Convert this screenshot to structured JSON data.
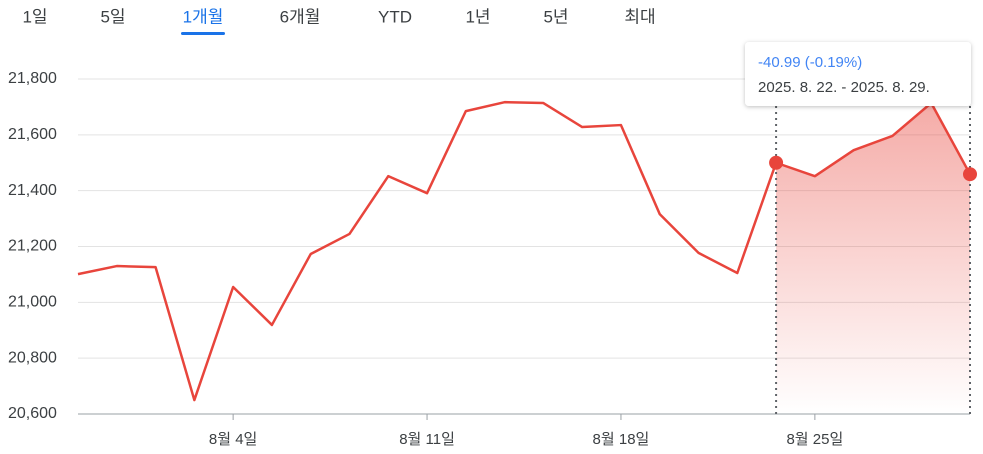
{
  "tabs": [
    "1일",
    "5일",
    "1개월",
    "6개월",
    "YTD",
    "1년",
    "5년",
    "최대"
  ],
  "selected_tab": 2,
  "chart_data": {
    "type": "line",
    "categories": [
      null,
      null,
      null,
      null,
      "8월 4일",
      null,
      null,
      null,
      null,
      "8월 11일",
      null,
      null,
      null,
      null,
      "8월 18일",
      null,
      null,
      null,
      null,
      "8월 25일",
      null,
      null,
      null,
      null
    ],
    "values": [
      21101,
      21130,
      21126,
      20650,
      21055,
      20919,
      21173,
      21245,
      21452,
      21391,
      21685,
      21717,
      21714,
      21628,
      21635,
      21316,
      21177,
      21105,
      21500,
      21452,
      21545,
      21596,
      21714,
      21459
    ],
    "color": "#e8453c",
    "ylim": [
      20600,
      21800
    ],
    "yticks": [
      {
        "value": 20600,
        "label": "20,600"
      },
      {
        "value": 20800,
        "label": "20,800"
      },
      {
        "value": 21000,
        "label": "21,000"
      },
      {
        "value": 21200,
        "label": "21,200"
      },
      {
        "value": 21400,
        "label": "21,400"
      },
      {
        "value": 21600,
        "label": "21,600"
      },
      {
        "value": 21800,
        "label": "21,800"
      }
    ],
    "grid": true,
    "highlight": [
      18,
      23
    ],
    "tooltip": {
      "change": "-40.99 (-0.19%)",
      "range": "2025. 8. 22. - 2025. 8. 29."
    }
  }
}
